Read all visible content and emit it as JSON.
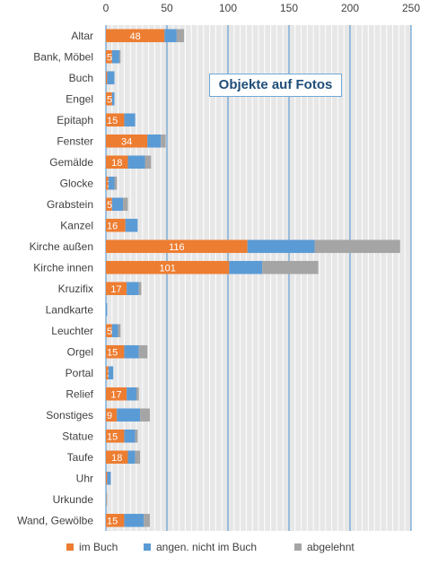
{
  "chart_data": {
    "type": "bar",
    "orientation": "horizontal",
    "stacked": true,
    "title": "Objekte auf Fotos",
    "xlim": [
      0,
      250
    ],
    "xticks": [
      "0",
      "50",
      "100",
      "150",
      "200",
      "250"
    ],
    "xtick_values": [
      0,
      50,
      100,
      150,
      200,
      250
    ],
    "grid": true,
    "legend_position": "bottom",
    "categories": [
      "Altar",
      "Bank, Möbel",
      "Buch",
      "Engel",
      "Epitaph",
      "Fenster",
      "Gemälde",
      "Glocke",
      "Grabstein",
      "Kanzel",
      "Kirche außen",
      "Kirche innen",
      "Kruzifix",
      "Landkarte",
      "Leuchter",
      "Orgel",
      "Portal",
      "Relief",
      "Sonstiges",
      "Statue",
      "Taufe",
      "Uhr",
      "Urkunde",
      "Wand, Gewölbe"
    ],
    "series": [
      {
        "name": "im Buch",
        "color": "#ed7d31",
        "values": [
          48,
          5,
          1,
          5,
          15,
          34,
          18,
          2,
          5,
          16,
          116,
          101,
          17,
          0,
          5,
          15,
          2,
          17,
          9,
          15,
          18,
          1,
          0,
          15
        ],
        "labels": [
          "48",
          "5",
          "1",
          "5",
          "15",
          "34",
          "18",
          "2",
          "5",
          "16",
          "116",
          "101",
          "17",
          "",
          "5",
          "15",
          "2",
          "17",
          "9",
          "15",
          "18",
          "",
          "",
          "15"
        ]
      },
      {
        "name": "angen. nicht im Buch",
        "color": "#5b9bd5",
        "values": [
          10,
          6,
          6,
          2,
          9,
          11,
          14,
          5,
          9,
          10,
          55,
          27,
          10,
          1,
          5,
          12,
          4,
          8,
          19,
          9,
          6,
          3,
          0,
          16
        ]
      },
      {
        "name": "abgelehnt",
        "color": "#a5a5a5",
        "values": [
          6,
          1,
          0,
          0,
          0,
          4,
          5,
          2,
          4,
          0,
          70,
          46,
          2,
          0,
          2,
          7,
          0,
          2,
          8,
          2,
          4,
          0,
          1,
          5
        ]
      }
    ]
  }
}
